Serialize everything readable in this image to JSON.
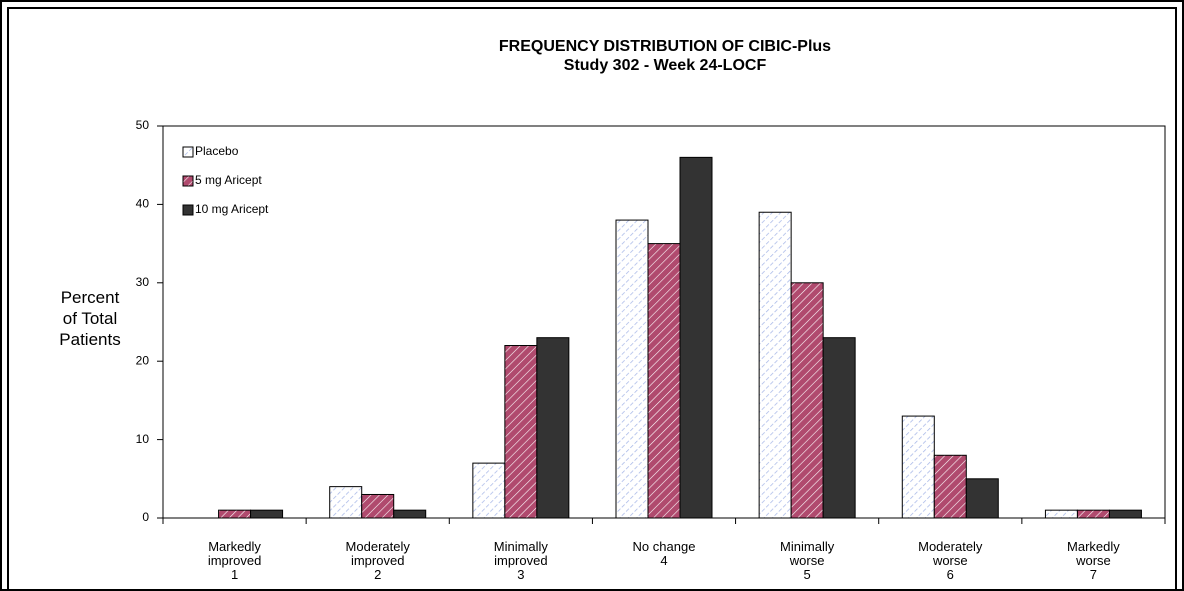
{
  "chart_data": {
    "type": "bar",
    "title": "FREQUENCY DISTRIBUTION OF CIBIC-Plus",
    "subtitle": "Study 302 - Week 24-LOCF",
    "y_label": "Percent\nof Total\nPatients",
    "categories": [
      "Markedly\nimproved\n1",
      "Moderately\nimproved\n2",
      "Minimally\nimproved\n3",
      "No change\n4",
      "Minimally\nworse\n5",
      "Moderately\nworse\n6",
      "Markedly\nworse\n7"
    ],
    "series": [
      {
        "name": "Placebo",
        "color": "#a8b8e8",
        "values": [
          0,
          4,
          7,
          38,
          39,
          13,
          1
        ]
      },
      {
        "name": "5 mg Aricept",
        "color": "#b04a6e",
        "values": [
          1,
          3,
          22,
          35,
          30,
          8,
          1
        ]
      },
      {
        "name": "10 mg Aricept",
        "color": "#333333",
        "values": [
          1,
          1,
          23,
          46,
          23,
          5,
          1
        ]
      }
    ],
    "ylim": [
      0,
      50
    ],
    "yticks": [
      0,
      10,
      20,
      30,
      40,
      50
    ],
    "legend": "top-left"
  }
}
